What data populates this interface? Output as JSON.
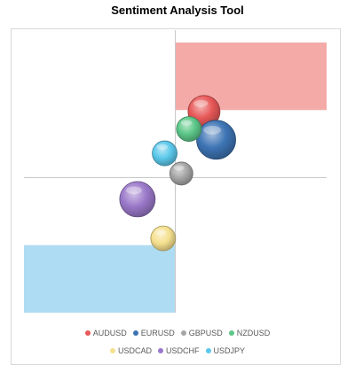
{
  "chart_data": {
    "type": "bubble",
    "title": "Sentiment Analysis Tool",
    "xlabel": "",
    "ylabel": "",
    "xlim": [
      -1,
      1
    ],
    "ylim": [
      -1,
      1
    ],
    "quadrant_lines": {
      "x": 0,
      "y": 0
    },
    "zones": [
      {
        "name": "upper-right-zone",
        "x_range": [
          0,
          1
        ],
        "y_range": [
          0.5,
          1
        ],
        "color": "#f4aaa7"
      },
      {
        "name": "lower-left-zone",
        "x_range": [
          -1,
          0
        ],
        "y_range": [
          -1,
          -0.5
        ],
        "color": "#aedcf3"
      }
    ],
    "series": [
      {
        "name": "AUDUSD",
        "x": 0.19,
        "y": 0.49,
        "size": 18,
        "color": "#e85858"
      },
      {
        "name": "EURUSD",
        "x": 0.27,
        "y": 0.28,
        "size": 22,
        "color": "#3d74b4"
      },
      {
        "name": "GBPUSD",
        "x": 0.04,
        "y": 0.03,
        "size": 13,
        "color": "#a5a5a5"
      },
      {
        "name": "NZDUSD",
        "x": 0.09,
        "y": 0.36,
        "size": 14,
        "color": "#5cc788"
      },
      {
        "name": "USDCAD",
        "x": -0.08,
        "y": -0.45,
        "size": 14,
        "color": "#f5e08e"
      },
      {
        "name": "USDCHF",
        "x": -0.25,
        "y": -0.16,
        "size": 20,
        "color": "#9a78c9"
      },
      {
        "name": "USDJPY",
        "x": -0.07,
        "y": 0.18,
        "size": 14,
        "color": "#5bc8ea"
      }
    ],
    "legend_position": "bottom",
    "grid": false
  }
}
